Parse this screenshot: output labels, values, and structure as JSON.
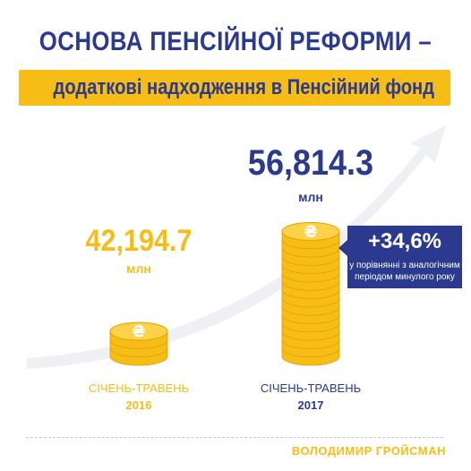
{
  "header": {
    "title": "ОСНОВА ПЕНСІЙНОЇ РЕФОРМИ –",
    "subtitle": "додаткові надходження в Пенсійний фонд"
  },
  "chart_data": {
    "type": "bar",
    "title": "ОСНОВА ПЕНСІЙНОЇ РЕФОРМИ – додаткові надходження в Пенсійний фонд",
    "categories": [
      [
        "СІЧЕНЬ-ТРАВЕНЬ",
        "2016"
      ],
      [
        "СІЧЕНЬ-ТРАВЕНЬ",
        "2017"
      ]
    ],
    "values": [
      42194.7,
      56814.3
    ],
    "value_labels": [
      "42,194.7",
      "56,814.3"
    ],
    "unit": "млн",
    "annotation": {
      "value": "+34,6%",
      "text": "у порівнянні з аналогічним періодом минулого року"
    },
    "colors": {
      "primary": "#2b3a8f",
      "accent": "#f6bd16"
    },
    "grid": false,
    "legend": "none"
  },
  "footer": {
    "author": "ВОЛОДИМИР ГРОЙСМАН"
  }
}
